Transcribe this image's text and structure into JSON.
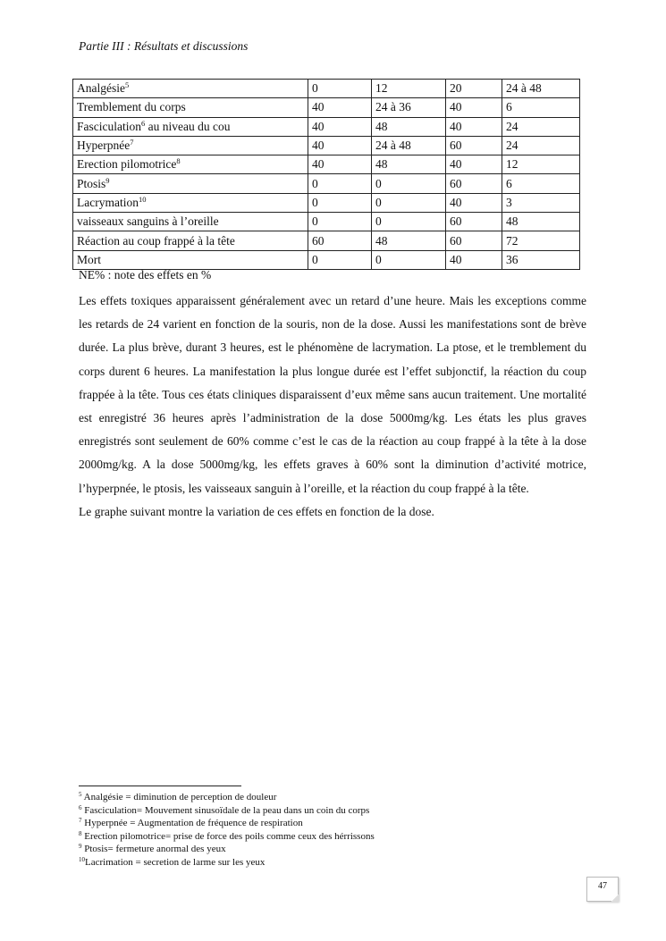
{
  "header": "Partie III : Résultats et discussions",
  "table": {
    "rows": [
      {
        "label": "Analgésie",
        "sup": "5",
        "values": [
          "0",
          "12",
          "20",
          "24 à 48"
        ]
      },
      {
        "label": "Tremblement du corps",
        "sup": "",
        "values": [
          "40",
          "24 à 36",
          "40",
          "6"
        ]
      },
      {
        "label": "Fasciculation",
        "sup": "6",
        "suffix": " au niveau du cou",
        "values": [
          "40",
          "48",
          "40",
          "24"
        ]
      },
      {
        "label": "Hyperpnée",
        "sup": "7",
        "values": [
          "40",
          "24 à 48",
          "60",
          "24"
        ]
      },
      {
        "label": "Erection pilomotrice",
        "sup": "8",
        "values": [
          "40",
          "48",
          "40",
          "12"
        ]
      },
      {
        "label": "Ptosis",
        "sup": "9",
        "values": [
          "0",
          "0",
          "60",
          "6"
        ]
      },
      {
        "label": "Lacrymation",
        "sup": "10",
        "values": [
          "0",
          "0",
          "40",
          "3"
        ]
      },
      {
        "label": "vaisseaux sanguins à l’oreille",
        "sup": "",
        "values": [
          "0",
          "0",
          "60",
          "48"
        ]
      },
      {
        "label": "Réaction au coup frappé à la tête",
        "sup": "",
        "values": [
          "60",
          "48",
          "60",
          "72"
        ]
      },
      {
        "label": "Mort",
        "sup": "",
        "values": [
          "0",
          "0",
          "40",
          "36"
        ]
      }
    ]
  },
  "note": "NE% : note des effets en %",
  "paragraphs": [
    "Les effets toxiques apparaissent généralement avec un retard d’une heure. Mais les exceptions comme les retards de 24 varient en fonction de la souris, non de la dose. Aussi les manifestations sont de brève durée. La plus brève, durant 3 heures, est le phénomène de lacrymation. La ptose, et le tremblement du corps durent 6 heures. La manifestation la plus longue durée est l’effet subjonctif, la réaction du coup frappée à la tête. Tous ces états cliniques disparaissent d’eux même sans aucun traitement. Une mortalité est enregistré 36 heures après l’administration de la dose 5000mg/kg. Les états les plus graves enregistrés sont seulement de 60% comme c’est le cas de la réaction au coup frappé à la tête à la dose 2000mg/kg. A la dose 5000mg/kg, les effets graves à 60% sont la diminution d’activité motrice, l’hyperpnée, le ptosis, les vaisseaux sanguin à l’oreille, et la réaction du coup frappé à la tête.",
    "Le graphe suivant montre la variation de ces effets en fonction de la dose."
  ],
  "footnotes": [
    {
      "num": "5",
      "text": " Analgésie = diminution de perception de douleur"
    },
    {
      "num": "6",
      "text": " Fasciculation= Mouvement sinusoïdale de la peau dans un coin du corps"
    },
    {
      "num": "7",
      "text": " Hyperpnée = Augmentation de fréquence de respiration"
    },
    {
      "num": "8",
      "text": " Erection pilomotrice= prise de force des poils comme ceux des hérrissons"
    },
    {
      "num": "9",
      "text": " Ptosis= fermeture anormal des yeux"
    },
    {
      "num": "10",
      "text": "Lacrimation  = secretion de larme sur les yeux"
    }
  ],
  "page_number": "47"
}
